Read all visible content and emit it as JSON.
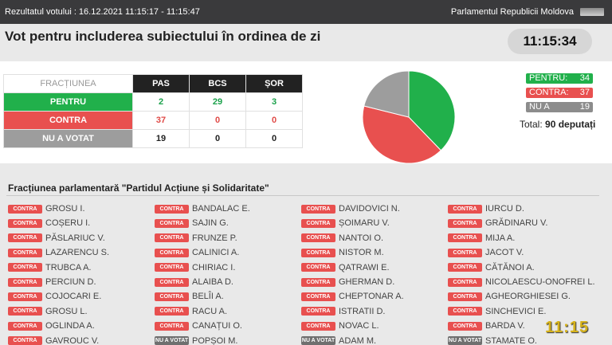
{
  "header": {
    "left_text": "Rezultatul votului : 16.12.2021 11:15:17 - 11:15:47",
    "right_text": "Parlamentul Republicii Moldova"
  },
  "vote_title": "Vot pentru includerea subiectului în ordinea de zi",
  "clock": "11:15:34",
  "table": {
    "corner": "FRACȚIUNEA",
    "columns": [
      "PAS",
      "BCS",
      "ȘOR"
    ],
    "rows": [
      {
        "label": "PENTRU",
        "values": [
          "2",
          "29",
          "3"
        ]
      },
      {
        "label": "CONTRA",
        "values": [
          "37",
          "0",
          "0"
        ]
      },
      {
        "label": "NU A VOTAT",
        "values": [
          "19",
          "0",
          "0"
        ]
      }
    ]
  },
  "legend": {
    "pentru_label": "PENTRU:",
    "pentru_value": "34",
    "contra_label": "CONTRA:",
    "contra_value": "37",
    "nav_label": "NU A VOTAT:",
    "nav_value": "19",
    "total_label": "Total:",
    "total_value": "90 deputați"
  },
  "chart_data": {
    "type": "pie",
    "categories": [
      "PENTRU",
      "CONTRA",
      "NU A VOTAT"
    ],
    "values": [
      34,
      37,
      19
    ],
    "colors": [
      "#21b04b",
      "#e8504f",
      "#9d9d9d"
    ]
  },
  "section_title": "Fracțiunea parlamentară \"Partidul Acțiune și Solidaritate\"",
  "badges": {
    "contra": "CONTRA",
    "nav": "NU A VOTAT"
  },
  "deputies": [
    [
      {
        "vote": "contra",
        "name": "GROSU I."
      },
      {
        "vote": "contra",
        "name": "COȘERU I."
      },
      {
        "vote": "contra",
        "name": "PĂSLARIUC V."
      },
      {
        "vote": "contra",
        "name": "LAZARENCU S."
      },
      {
        "vote": "contra",
        "name": "TRUBCA A."
      },
      {
        "vote": "contra",
        "name": "PERCIUN D."
      },
      {
        "vote": "contra",
        "name": "COJOCARI E."
      },
      {
        "vote": "contra",
        "name": "GROSU L."
      },
      {
        "vote": "contra",
        "name": "OGLINDA A."
      },
      {
        "vote": "contra",
        "name": "GAVROUC V."
      }
    ],
    [
      {
        "vote": "contra",
        "name": "BANDALAC E."
      },
      {
        "vote": "contra",
        "name": "SAJIN G."
      },
      {
        "vote": "contra",
        "name": "FRUNZE P."
      },
      {
        "vote": "contra",
        "name": "CALINICI A."
      },
      {
        "vote": "contra",
        "name": "CHIRIAC I."
      },
      {
        "vote": "contra",
        "name": "ALAIBA D."
      },
      {
        "vote": "contra",
        "name": "BELÎI A."
      },
      {
        "vote": "contra",
        "name": "RACU A."
      },
      {
        "vote": "contra",
        "name": "CANAȚUI O."
      },
      {
        "vote": "nav",
        "name": "POPȘOI M."
      }
    ],
    [
      {
        "vote": "contra",
        "name": "DAVIDOVICI N."
      },
      {
        "vote": "contra",
        "name": "ȘOIMARU V."
      },
      {
        "vote": "contra",
        "name": "NANTOI O."
      },
      {
        "vote": "contra",
        "name": "NISTOR M."
      },
      {
        "vote": "contra",
        "name": "QATRAWI E."
      },
      {
        "vote": "contra",
        "name": "GHERMAN D."
      },
      {
        "vote": "contra",
        "name": "CHEPTONAR A."
      },
      {
        "vote": "contra",
        "name": "ISTRATII D."
      },
      {
        "vote": "contra",
        "name": "NOVAC L."
      },
      {
        "vote": "nav",
        "name": "ADAM M."
      }
    ],
    [
      {
        "vote": "contra",
        "name": "IURCU D."
      },
      {
        "vote": "contra",
        "name": "GRĂDINARU V."
      },
      {
        "vote": "contra",
        "name": "MIJA A."
      },
      {
        "vote": "contra",
        "name": "JACOT V."
      },
      {
        "vote": "contra",
        "name": "CĂTĂNOI A."
      },
      {
        "vote": "contra",
        "name": "NICOLAESCU-ONOFREI L."
      },
      {
        "vote": "contra",
        "name": "AGHEORGHIESEI G."
      },
      {
        "vote": "contra",
        "name": "SINCHEVICI E."
      },
      {
        "vote": "contra",
        "name": "BARDA V."
      },
      {
        "vote": "nav",
        "name": "STAMATE O."
      }
    ]
  ],
  "video_timestamp": "11:15"
}
